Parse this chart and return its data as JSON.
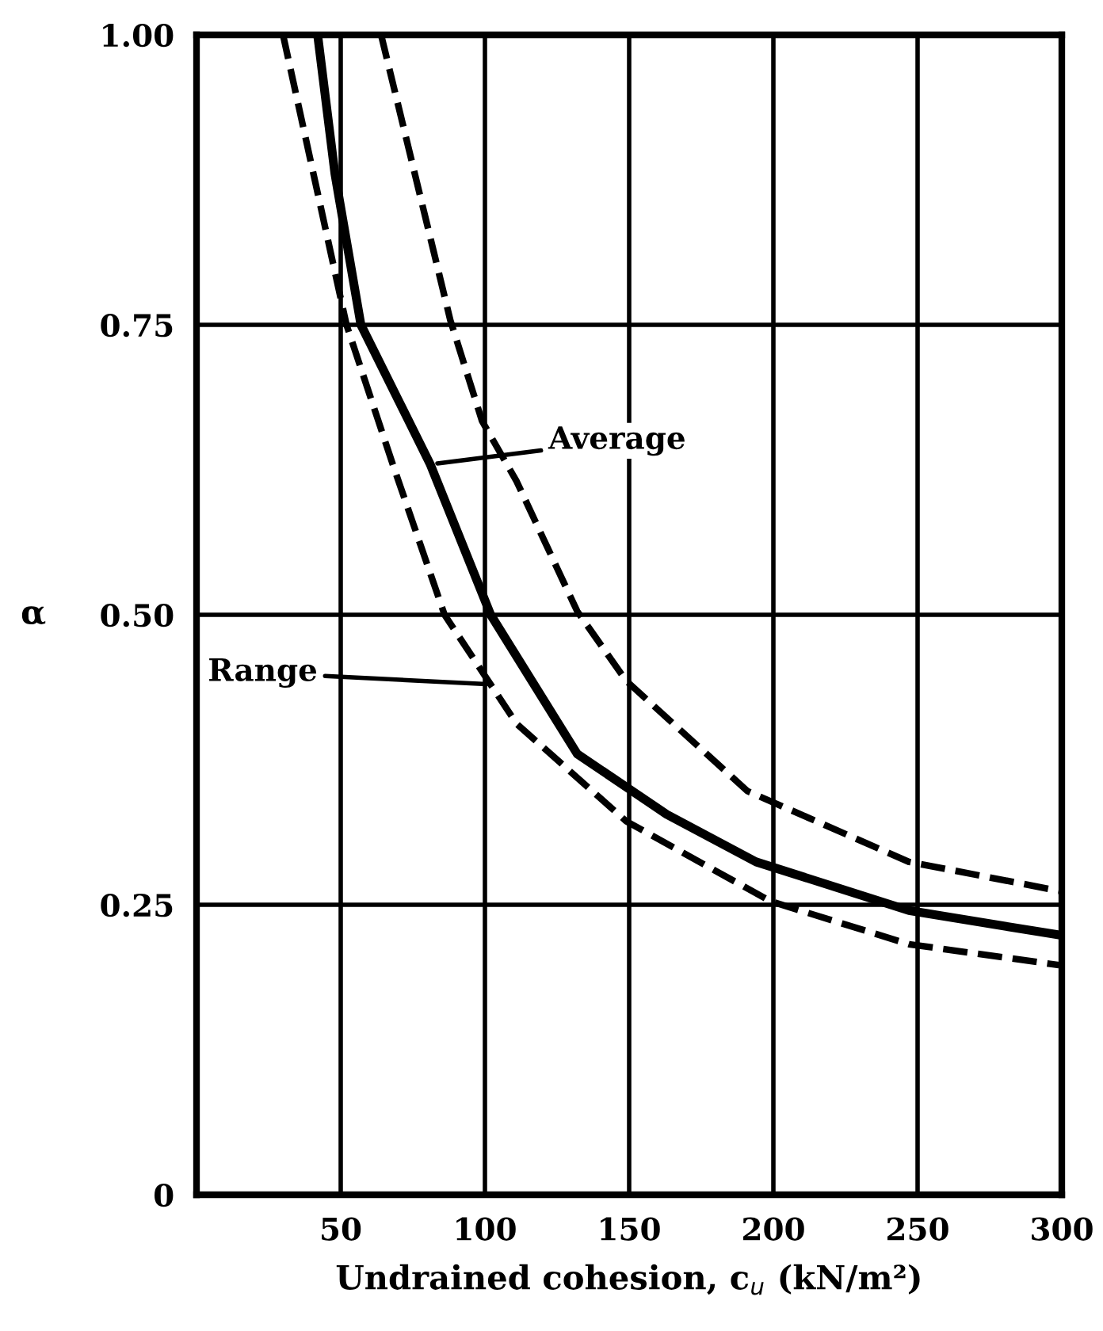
{
  "chart_data": {
    "type": "line",
    "xlabel": "Undrained cohesion, c$_{u}$ (kN/m²)",
    "ylabel": "α",
    "xlim": [
      0,
      300
    ],
    "ylim": [
      0,
      1
    ],
    "xticks": [
      50,
      100,
      150,
      200,
      250,
      300
    ],
    "yticks": [
      {
        "value": 0,
        "label": "0"
      },
      {
        "value": 0.25,
        "label": "0.25"
      },
      {
        "value": 0.5,
        "label": "0.50"
      },
      {
        "value": 0.75,
        "label": "0.75"
      },
      {
        "value": 1,
        "label": "1.00"
      }
    ],
    "grid": true,
    "legend": false,
    "series": [
      {
        "color": "#000000",
        "line_style": "dashed",
        "x": [
          30,
          52,
          68,
          86,
          111,
          149,
          199,
          247,
          299
        ],
        "values": [
          1.0,
          0.75,
          0.63,
          0.5,
          0.406,
          0.322,
          0.253,
          0.216,
          0.198
        ]
      },
      {
        "color": "#000000",
        "line_style": "solid",
        "x": [
          42,
          48,
          57,
          81,
          102,
          132,
          163,
          194,
          247,
          299
        ],
        "values": [
          1.0,
          0.88,
          0.75,
          0.63,
          0.5,
          0.38,
          0.328,
          0.287,
          0.245,
          0.224
        ]
      },
      {
        "color": "#000000",
        "line_style": "dashed",
        "x": [
          64,
          88,
          99,
          111,
          132,
          149,
          191,
          247,
          299
        ],
        "values": [
          1.0,
          0.754,
          0.667,
          0.615,
          0.503,
          0.443,
          0.348,
          0.287,
          0.262
        ]
      }
    ],
    "annotations": [
      {
        "text": "Average",
        "x": 82,
        "y": 0.63
      },
      {
        "text": "Range",
        "x": 102,
        "y": 0.44
      }
    ]
  }
}
